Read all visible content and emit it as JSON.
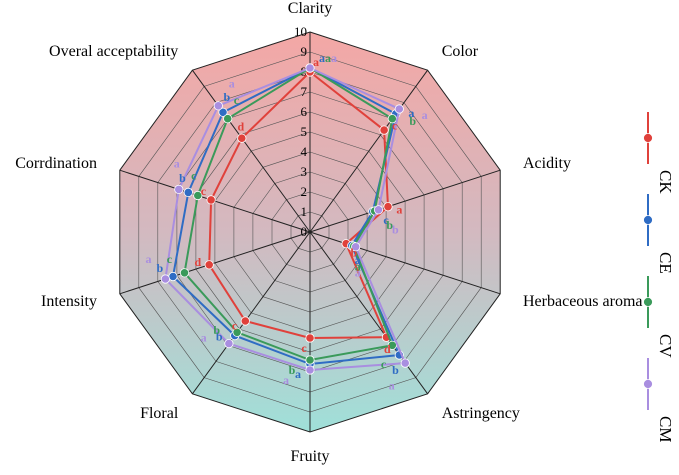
{
  "chart_data": {
    "type": "radar",
    "axes": [
      "Clarity",
      "Color",
      "Acidity",
      "Herbaceous aroma",
      "Astringency",
      "Fruity",
      "Floral",
      "Intensity",
      "Corrdination",
      "Overal acceptability"
    ],
    "rlim": [
      0,
      10
    ],
    "ticks": [
      "0",
      "1",
      "2",
      "3",
      "4",
      "5",
      "6",
      "7",
      "8",
      "9",
      "10"
    ],
    "series": [
      {
        "name": "CK",
        "color": "#e0413b",
        "values": [
          8.0,
          6.3,
          4.1,
          1.9,
          6.5,
          5.3,
          5.5,
          5.3,
          5.2,
          5.8
        ],
        "sig": [
          "a",
          "c",
          "a",
          "b",
          "d",
          "c",
          "c",
          "d",
          "c",
          "d"
        ]
      },
      {
        "name": "CE",
        "color": "#2f6cc4",
        "values": [
          8.2,
          7.3,
          3.3,
          2.2,
          7.6,
          6.6,
          6.4,
          7.2,
          6.4,
          7.4
        ],
        "sig": [
          "a",
          "a",
          "c",
          "a",
          "b",
          "a",
          "b",
          "b",
          "b",
          "b"
        ]
      },
      {
        "name": "CV",
        "color": "#3a9a5a",
        "values": [
          8.2,
          7.0,
          3.4,
          2.3,
          7.0,
          6.4,
          6.2,
          6.6,
          5.9,
          7.0
        ],
        "sig": [
          "a",
          "b",
          "b",
          "a",
          "c",
          "b",
          "b",
          "c",
          "c",
          "c"
        ]
      },
      {
        "name": "CM",
        "color": "#a98ee0",
        "values": [
          8.2,
          7.6,
          3.6,
          2.4,
          8.1,
          6.9,
          6.9,
          7.6,
          6.9,
          7.8
        ],
        "sig": [
          "a",
          "a",
          "b",
          "a",
          "a",
          "a",
          "a",
          "a",
          "a",
          "a"
        ]
      }
    ],
    "legend_position": "right"
  }
}
